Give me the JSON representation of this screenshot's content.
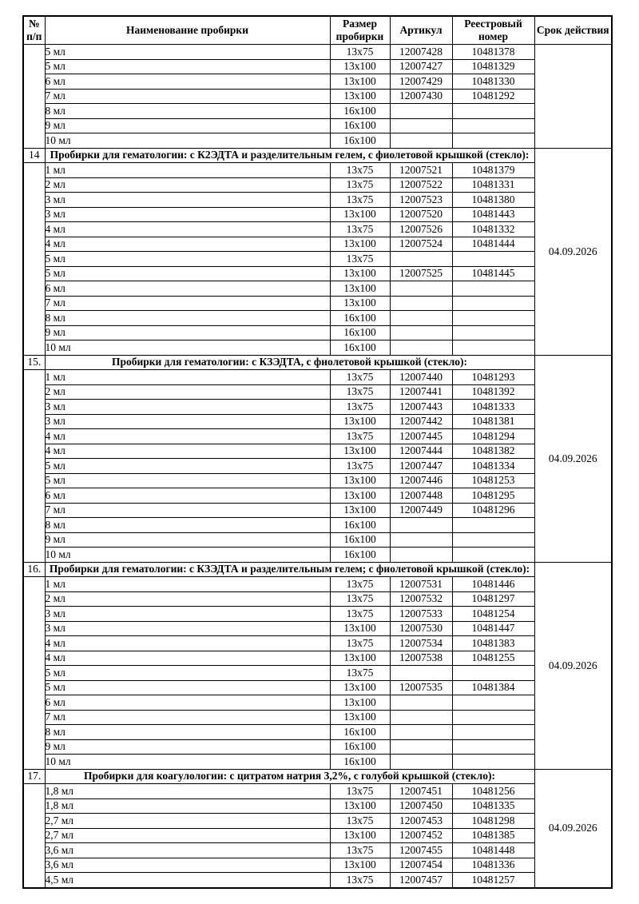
{
  "colors": {
    "page_background": "#ffffff",
    "border": "#000000",
    "text": "#000000"
  },
  "table": {
    "columns": [
      {
        "id": "num",
        "label": "№ п/п"
      },
      {
        "id": "name",
        "label": "Наименование пробирки"
      },
      {
        "id": "size",
        "label": "Размер пробирки"
      },
      {
        "id": "article",
        "label": "Артикул"
      },
      {
        "id": "registry",
        "label": "Реестровый номер"
      },
      {
        "id": "validity",
        "label": "Срок действия"
      }
    ],
    "sections": [
      {
        "number": "",
        "title": "",
        "validity": "",
        "rows": [
          [
            "5 мл",
            "13x75",
            "12007428",
            "10481378"
          ],
          [
            "5 мл",
            "13x100",
            "12007427",
            "10481329"
          ],
          [
            "6 мл",
            "13x100",
            "12007429",
            "10481330"
          ],
          [
            "7 мл",
            "13x100",
            "12007430",
            "10481292"
          ],
          [
            "8 мл",
            "16x100",
            "",
            ""
          ],
          [
            "9 мл",
            "16x100",
            "",
            ""
          ],
          [
            "10 мл",
            "16x100",
            "",
            ""
          ]
        ]
      },
      {
        "number": "14",
        "title": "Пробирки для гематологии: с К2ЭДТА и разделительным гелем, с фиолетовой крышкой (стекло):",
        "validity": "04.09.2026",
        "rows": [
          [
            "1 мл",
            "13x75",
            "12007521",
            "10481379"
          ],
          [
            "2 мл",
            "13x75",
            "12007522",
            "10481331"
          ],
          [
            "3 мл",
            "13x75",
            "12007523",
            "10481380"
          ],
          [
            "3 мл",
            "13x100",
            "12007520",
            "10481443"
          ],
          [
            "4 мл",
            "13x75",
            "12007526",
            "10481332"
          ],
          [
            "4 мл",
            "13x100",
            "12007524",
            "10481444"
          ],
          [
            "5 мл",
            "13x75",
            "",
            ""
          ],
          [
            "5 мл",
            "13x100",
            "12007525",
            "10481445"
          ],
          [
            "6 мл",
            "13x100",
            "",
            ""
          ],
          [
            "7 мл",
            "13x100",
            "",
            ""
          ],
          [
            "8 мл",
            "16x100",
            "",
            ""
          ],
          [
            "9 мл",
            "16x100",
            "",
            ""
          ],
          [
            "10 мл",
            "16x100",
            "",
            ""
          ]
        ]
      },
      {
        "number": "15.",
        "title": "Пробирки для гематологии: с КЗЭДТА, с фиолетовой крышкой (стекло):",
        "validity": "04.09.2026",
        "rows": [
          [
            "1 мл",
            "13x75",
            "12007440",
            "10481293"
          ],
          [
            "2 мл",
            "13x75",
            "12007441",
            "10481392"
          ],
          [
            "3 мл",
            "13x75",
            "12007443",
            "10481333"
          ],
          [
            "3 мл",
            "13x100",
            "12007442",
            "10481381"
          ],
          [
            "4 мл",
            "13x75",
            "12007445",
            "10481294"
          ],
          [
            "4 мл",
            "13x100",
            "12007444",
            "10481382"
          ],
          [
            "5 мл",
            "13x75",
            "12007447",
            "10481334"
          ],
          [
            "5 мл",
            "13x100",
            "12007446",
            "10481253"
          ],
          [
            "6 мл",
            "13x100",
            "12007448",
            "10481295"
          ],
          [
            "7 мл",
            "13x100",
            "12007449",
            "10481296"
          ],
          [
            "8 мл",
            "16x100",
            "",
            ""
          ],
          [
            "9 мл",
            "16x100",
            "",
            ""
          ],
          [
            "10 мл",
            "16x100",
            "",
            ""
          ]
        ]
      },
      {
        "number": "16.",
        "title": "Пробирки для гематологии: с КЗЭДТА и разделительным гелем; с фиолетовой крышкой (стекло):",
        "validity": "04.09.2026",
        "rows": [
          [
            "1 мл",
            "13x75",
            "12007531",
            "10481446"
          ],
          [
            "2 мл",
            "13x75",
            "12007532",
            "10481297"
          ],
          [
            "3 мл",
            "13x75",
            "12007533",
            "10481254"
          ],
          [
            "3 мл",
            "13x100",
            "12007530",
            "10481447"
          ],
          [
            "4 мл",
            "13x75",
            "12007534",
            "10481383"
          ],
          [
            "4 мл",
            "13x100",
            "12007538",
            "10481255"
          ],
          [
            "5 мл",
            "13x75",
            "",
            ""
          ],
          [
            "5 мл",
            "13x100",
            "12007535",
            "10481384"
          ],
          [
            "6 мл",
            "13x100",
            "",
            ""
          ],
          [
            "7 мл",
            "13x100",
            "",
            ""
          ],
          [
            "8 мл",
            "16x100",
            "",
            ""
          ],
          [
            "9 мл",
            "16x100",
            "",
            ""
          ],
          [
            "10 мл",
            "16x100",
            "",
            ""
          ]
        ]
      },
      {
        "number": "17.",
        "title": "Пробирки для коагулологии: с цитратом натрия 3,2%, с голубой крышкой (стекло):",
        "validity": "04.09.2026",
        "rows": [
          [
            "1,8 мл",
            "13x75",
            "12007451",
            "10481256"
          ],
          [
            "1,8 мл",
            "13x100",
            "12007450",
            "10481335"
          ],
          [
            "2,7 мл",
            "13x75",
            "12007453",
            "10481298"
          ],
          [
            "2,7 мл",
            "13x100",
            "12007452",
            "10481385"
          ],
          [
            "3,6 мл",
            "13x75",
            "12007455",
            "10481448"
          ],
          [
            "3,6 мл",
            "13x100",
            "12007454",
            "10481336"
          ],
          [
            "4,5 мл",
            "13x75",
            "12007457",
            "10481257"
          ]
        ]
      }
    ]
  }
}
